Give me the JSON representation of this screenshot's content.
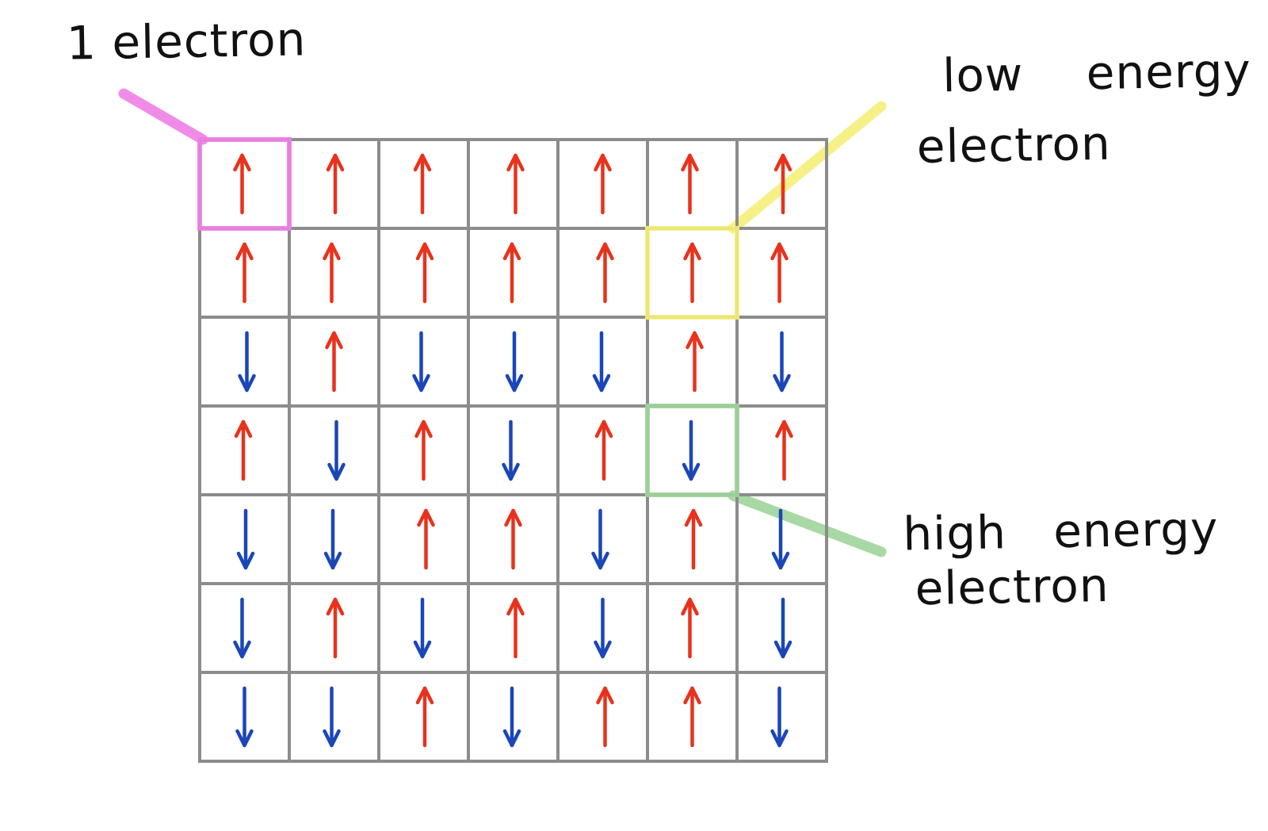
{
  "labels": {
    "one_electron": "1 electron",
    "low_energy_line1": "low energy",
    "low_energy_line2": "electron",
    "high_energy_line1": "high energy",
    "high_energy_line2": "electron"
  },
  "colors": {
    "spin_up": "#e8321c",
    "spin_down": "#1a46b8",
    "grid": "#8c8c8c",
    "highlight_one_electron": "#f07ee6",
    "highlight_low_energy": "#f4f07a",
    "highlight_high_energy": "#9fd49a"
  },
  "grid": {
    "rows": 7,
    "cols": 7,
    "spins": [
      [
        "up",
        "up",
        "up",
        "up",
        "up",
        "up",
        "up"
      ],
      [
        "up",
        "up",
        "up",
        "up",
        "up",
        "up",
        "up"
      ],
      [
        "down",
        "up",
        "down",
        "down",
        "down",
        "up",
        "down"
      ],
      [
        "up",
        "down",
        "up",
        "down",
        "up",
        "down",
        "up"
      ],
      [
        "down",
        "down",
        "up",
        "up",
        "down",
        "up",
        "down"
      ],
      [
        "down",
        "up",
        "down",
        "up",
        "down",
        "up",
        "down"
      ],
      [
        "down",
        "down",
        "up",
        "down",
        "up",
        "up",
        "down"
      ]
    ]
  },
  "highlights": [
    {
      "name": "one-electron-highlight",
      "row": 0,
      "col": 0,
      "color_key": "highlight_one_electron"
    },
    {
      "name": "low-energy-highlight",
      "row": 1,
      "col": 5,
      "color_key": "highlight_low_energy"
    },
    {
      "name": "high-energy-highlight",
      "row": 3,
      "col": 5,
      "color_key": "highlight_high_energy"
    }
  ],
  "icons": {
    "spin_up": "up-arrow-icon",
    "spin_down": "down-arrow-icon"
  }
}
